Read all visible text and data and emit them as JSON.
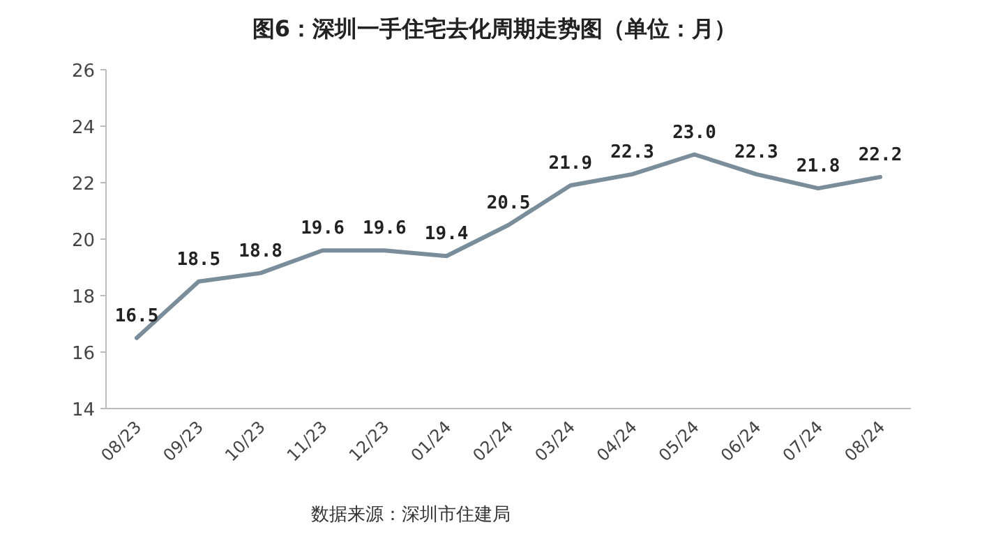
{
  "chart_data": {
    "type": "line",
    "title": "图6：深圳一手住宅去化周期走势图（单位：月）",
    "categories": [
      "08/23",
      "09/23",
      "10/23",
      "11/23",
      "12/23",
      "01/24",
      "02/24",
      "03/24",
      "04/24",
      "05/24",
      "06/24",
      "07/24",
      "08/24"
    ],
    "series": [
      {
        "color": "#7a8d9b",
        "values": [
          16.5,
          18.5,
          18.8,
          19.6,
          19.6,
          19.4,
          20.5,
          21.9,
          22.3,
          23.0,
          22.3,
          21.8,
          22.2
        ]
      }
    ],
    "ylim": [
      14,
      26
    ],
    "yticks": [
      14,
      16,
      18,
      20,
      22,
      24,
      26
    ],
    "value_labels": [
      "16.5",
      "18.5",
      "18.8",
      "19.6",
      "19.6",
      "19.4",
      "20.5",
      "21.9",
      "22.3",
      "23.0",
      "22.3",
      "21.8",
      "22.2"
    ],
    "annotations": [
      "数据来源：深圳市住建局"
    ]
  }
}
